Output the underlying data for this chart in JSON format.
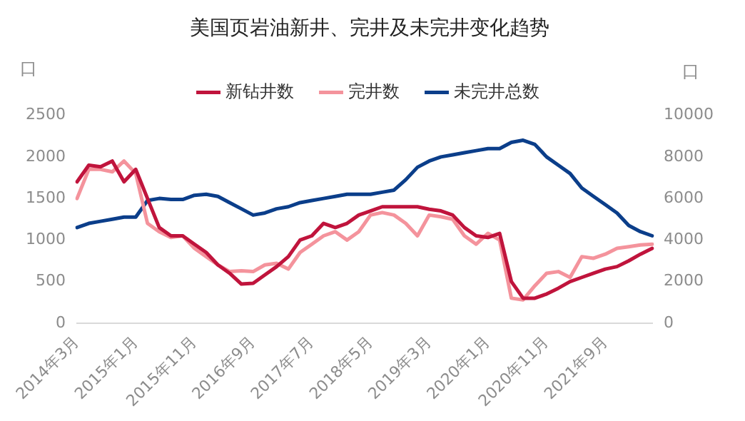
{
  "chart_data": {
    "type": "line",
    "title": "美国页岩油新井、完井及未完井变化趋势",
    "ylabel": "口",
    "y2label": "口",
    "categories": [
      "2014年3月",
      null,
      null,
      null,
      null,
      "2015年1月",
      null,
      null,
      null,
      null,
      "2015年11月",
      null,
      null,
      null,
      null,
      "2016年9月",
      null,
      null,
      null,
      null,
      "2017年7月",
      null,
      null,
      null,
      null,
      "2018年5月",
      null,
      null,
      null,
      null,
      "2019年3月",
      null,
      null,
      null,
      null,
      "2020年1月",
      null,
      null,
      null,
      null,
      "2020年11月",
      null,
      null,
      null,
      null,
      "2021年9月",
      null,
      null,
      null,
      null
    ],
    "series": [
      {
        "name": "新钻井数",
        "color": "#c0143c",
        "values": [
          1700,
          1900,
          1880,
          1950,
          1700,
          1850,
          1500,
          1150,
          1050,
          1050,
          950,
          850,
          700,
          600,
          470,
          480,
          580,
          680,
          800,
          1000,
          1050,
          1200,
          1150,
          1200,
          1300,
          1350,
          1400,
          1400,
          1400,
          1400,
          1370,
          1350,
          1300,
          1150,
          1050,
          1030,
          1080,
          500,
          300,
          300,
          350,
          420,
          500,
          550,
          600,
          650,
          680,
          750,
          830,
          900
        ]
      },
      {
        "name": "完井数",
        "color": "#f4939c",
        "values": [
          1500,
          1850,
          1850,
          1820,
          1950,
          1800,
          1200,
          1100,
          1030,
          1050,
          900,
          800,
          700,
          620,
          630,
          620,
          700,
          720,
          650,
          850,
          950,
          1050,
          1100,
          1000,
          1100,
          1300,
          1330,
          1300,
          1200,
          1050,
          1300,
          1280,
          1250,
          1050,
          950,
          1080,
          1000,
          300,
          280,
          450,
          600,
          620,
          550,
          800,
          780,
          830,
          900,
          920,
          940,
          950
        ]
      },
      {
        "name": "未完井总数",
        "color": "#0b3e8a",
        "axis": "y2",
        "values": [
          4600,
          4800,
          4900,
          5000,
          5100,
          5100,
          5900,
          6000,
          5950,
          5950,
          6150,
          6200,
          6100,
          5800,
          5500,
          5200,
          5300,
          5500,
          5600,
          5800,
          5900,
          6000,
          6100,
          6200,
          6200,
          6200,
          6300,
          6400,
          6900,
          7500,
          7800,
          8000,
          8100,
          8200,
          8300,
          8400,
          8400,
          8700,
          8800,
          8600,
          8000,
          7600,
          7200,
          6500,
          6100,
          5700,
          5300,
          4700,
          4400,
          4200
        ]
      }
    ],
    "ylim": [
      0,
      2500
    ],
    "yticks": [
      0,
      500,
      1000,
      1500,
      2000,
      2500
    ],
    "y2lim": [
      0,
      10000
    ],
    "y2ticks": [
      0,
      2000,
      4000,
      6000,
      8000,
      10000
    ],
    "grid": false,
    "legend": "top",
    "marker": "none",
    "line_style": "solid"
  }
}
